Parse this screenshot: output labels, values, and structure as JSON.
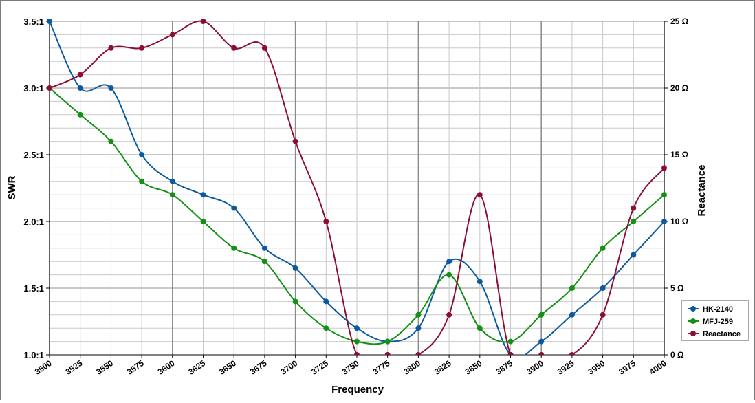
{
  "chart_data": {
    "type": "line",
    "xlabel": "Frequency",
    "ylabel_left": "SWR",
    "ylabel_right": "Reactance",
    "x": [
      3500,
      3525,
      3550,
      3575,
      3600,
      3625,
      3650,
      3675,
      3700,
      3725,
      3750,
      3775,
      3800,
      3825,
      3850,
      3875,
      3900,
      3925,
      3950,
      3975,
      4000
    ],
    "x_tick_labels": [
      "3500",
      "3525",
      "3550",
      "3575",
      "3600",
      "3625",
      "3650",
      "3675",
      "3700",
      "3725",
      "3750",
      "3775",
      "3800",
      "3825",
      "3850",
      "3875",
      "3900",
      "3925",
      "3950",
      "3975",
      "4000"
    ],
    "ylim_left": [
      1.0,
      3.5
    ],
    "ylim_right": [
      0,
      25
    ],
    "left_ticks": [
      1.0,
      1.5,
      2.0,
      2.5,
      3.0,
      3.5
    ],
    "left_tick_labels": [
      "1.0:1",
      "1.5:1",
      "2.0:1",
      "2.5:1",
      "3.0:1",
      "3.5:1"
    ],
    "right_ticks": [
      0,
      5,
      10,
      15,
      20,
      25
    ],
    "right_tick_labels": [
      "0 Ω",
      "5 Ω",
      "10 Ω",
      "15 Ω",
      "20 Ω",
      "25 Ω"
    ],
    "grid": true,
    "legend_position": "right",
    "series": [
      {
        "name": "HK-2140",
        "axis": "left",
        "color": "#0b5aa0",
        "values": [
          3.5,
          3.0,
          3.0,
          2.5,
          2.3,
          2.2,
          2.1,
          1.8,
          1.65,
          1.4,
          1.2,
          1.1,
          1.2,
          1.7,
          1.55,
          1.0,
          1.1,
          1.3,
          1.5,
          1.75,
          2.0
        ]
      },
      {
        "name": "MFJ-259",
        "axis": "left",
        "color": "#149114",
        "values": [
          3.0,
          2.8,
          2.6,
          2.3,
          2.2,
          2.0,
          1.8,
          1.7,
          1.4,
          1.2,
          1.1,
          1.1,
          1.3,
          1.6,
          1.2,
          1.1,
          1.3,
          1.5,
          1.8,
          2.0,
          2.2
        ]
      },
      {
        "name": "Reactance",
        "axis": "right",
        "color": "#8c0f32",
        "values": [
          20,
          21,
          23,
          23,
          24,
          25,
          23,
          23,
          16,
          10,
          0,
          0,
          0,
          3,
          12,
          0,
          0,
          0,
          3,
          11,
          14
        ]
      }
    ]
  }
}
